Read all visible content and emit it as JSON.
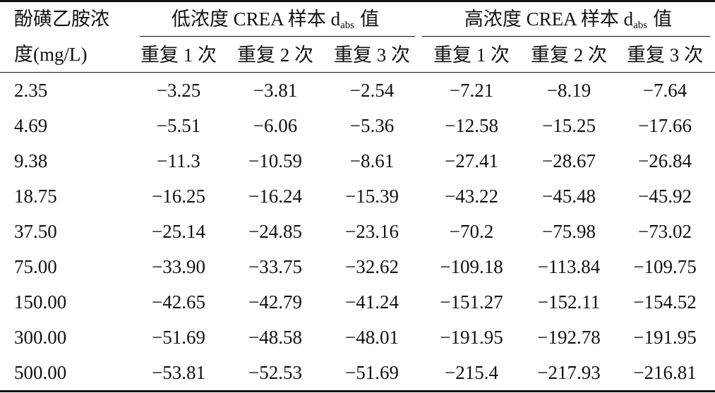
{
  "table": {
    "row_header": [
      "酚磺乙胺浓",
      "度(mg/L)"
    ],
    "groups": [
      {
        "before": "低浓度 CREA 样本 d",
        "subscript": "abs",
        "after": "值"
      },
      {
        "before": "高浓度 CREA 样本 d",
        "subscript": "abs",
        "after": "值"
      }
    ],
    "subheaders": [
      "重复 1 次",
      "重复 2 次",
      "重复 3 次",
      "重复 1 次",
      "重复 2 次",
      "重复 3 次"
    ],
    "rows": [
      [
        "2.35",
        "−3.25",
        "−3.81",
        "−2.54",
        "−7.21",
        "−8.19",
        "−7.64"
      ],
      [
        "4.69",
        "−5.51",
        "−6.06",
        "−5.36",
        "−12.58",
        "−15.25",
        "−17.66"
      ],
      [
        "9.38",
        "−11.3",
        "−10.59",
        "−8.61",
        "−27.41",
        "−28.67",
        "−26.84"
      ],
      [
        "18.75",
        "−16.25",
        "−16.24",
        "−15.39",
        "−43.22",
        "−45.48",
        "−45.92"
      ],
      [
        "37.50",
        "−25.14",
        "−24.85",
        "−23.16",
        "−70.2",
        "−75.98",
        "−73.02"
      ],
      [
        "75.00",
        "−33.90",
        "−33.75",
        "−32.62",
        "−109.18",
        "−113.84",
        "−109.75"
      ],
      [
        "150.00",
        "−42.65",
        "−42.79",
        "−41.24",
        "−151.27",
        "−152.11",
        "−154.52"
      ],
      [
        "300.00",
        "−51.69",
        "−48.58",
        "−48.01",
        "−191.95",
        "−192.78",
        "−191.95"
      ],
      [
        "500.00",
        "−53.81",
        "−52.53",
        "−51.69",
        "−215.4",
        "−217.93",
        "−216.81"
      ]
    ]
  }
}
